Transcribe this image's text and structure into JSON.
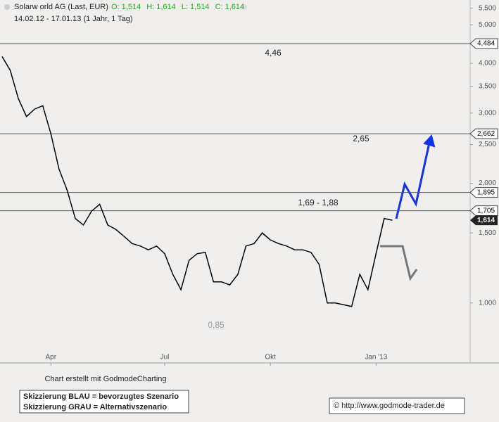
{
  "chart_data": {
    "type": "line",
    "title": "Solarw orld AG (Last, EUR)",
    "quote": [
      "O: 1,514",
      "H: 1,614",
      "L: 1,514",
      "C: 1,614"
    ],
    "quote_color": "#22aa22",
    "subtitle": "14.02.12 - 17.01.13 (1 Jahr, 1 Tag)",
    "categories": [
      null,
      null,
      null,
      null,
      null,
      null,
      "Apr",
      null,
      null,
      null,
      null,
      null,
      null,
      null,
      null,
      null,
      null,
      null,
      null,
      null,
      "Jul",
      null,
      null,
      null,
      null,
      null,
      null,
      null,
      null,
      null,
      null,
      null,
      null,
      "Okt",
      null,
      null,
      null,
      null,
      null,
      null,
      null,
      null,
      null,
      null,
      null,
      null,
      "Jan '13",
      null,
      null
    ],
    "series": [
      {
        "name": "Solarworld",
        "color": "#000000",
        "values": [
          4.16,
          3.84,
          3.26,
          2.94,
          3.07,
          3.13,
          2.66,
          2.17,
          1.92,
          1.63,
          1.57,
          1.7,
          1.77,
          1.57,
          1.53,
          1.47,
          1.41,
          1.39,
          1.36,
          1.39,
          1.33,
          1.18,
          1.08,
          1.28,
          1.33,
          1.34,
          1.13,
          1.13,
          1.11,
          1.18,
          1.39,
          1.41,
          1.5,
          1.44,
          1.41,
          1.39,
          1.36,
          1.36,
          1.34,
          1.25,
          1.0,
          1.0,
          0.99,
          0.98,
          1.18,
          1.08,
          1.33,
          1.63,
          1.614
        ]
      }
    ],
    "yscale": "log",
    "ylim": [
      0.707,
      5.77
    ],
    "yticks": [
      {
        "value": 1.0,
        "label": "1,000"
      },
      {
        "value": 1.5,
        "label": "1,500"
      },
      {
        "value": 2.0,
        "label": "2,000"
      },
      {
        "value": 2.5,
        "label": "2,500"
      },
      {
        "value": 3.0,
        "label": "3,000"
      },
      {
        "value": 3.5,
        "label": "3,500"
      },
      {
        "value": 4.0,
        "label": "4,000"
      },
      {
        "value": 4.5,
        "label": "4,500"
      },
      {
        "value": 5.0,
        "label": "5,000"
      },
      {
        "value": 5.5,
        "label": "5,500"
      }
    ],
    "levels": [
      {
        "value": 4.484,
        "label": "4,484"
      },
      {
        "value": 2.662,
        "label": "2,662"
      },
      {
        "value": 1.895,
        "label": "1,895"
      },
      {
        "value": 1.705,
        "label": "1,705"
      }
    ],
    "last": {
      "value": 1.614,
      "label": "1,614"
    },
    "annotations": [
      "4,46",
      "2,65",
      "1,69 - 1,88",
      "0,85"
    ],
    "credit": "Chart erstellt mit GodmodeCharting",
    "legend_lines": [
      "Skizzierung BLAU = bevorzugtes Szenario",
      "Skizzierung GRAU = Alternativszenario"
    ],
    "url": "© http://www.godmode-trader.de"
  }
}
